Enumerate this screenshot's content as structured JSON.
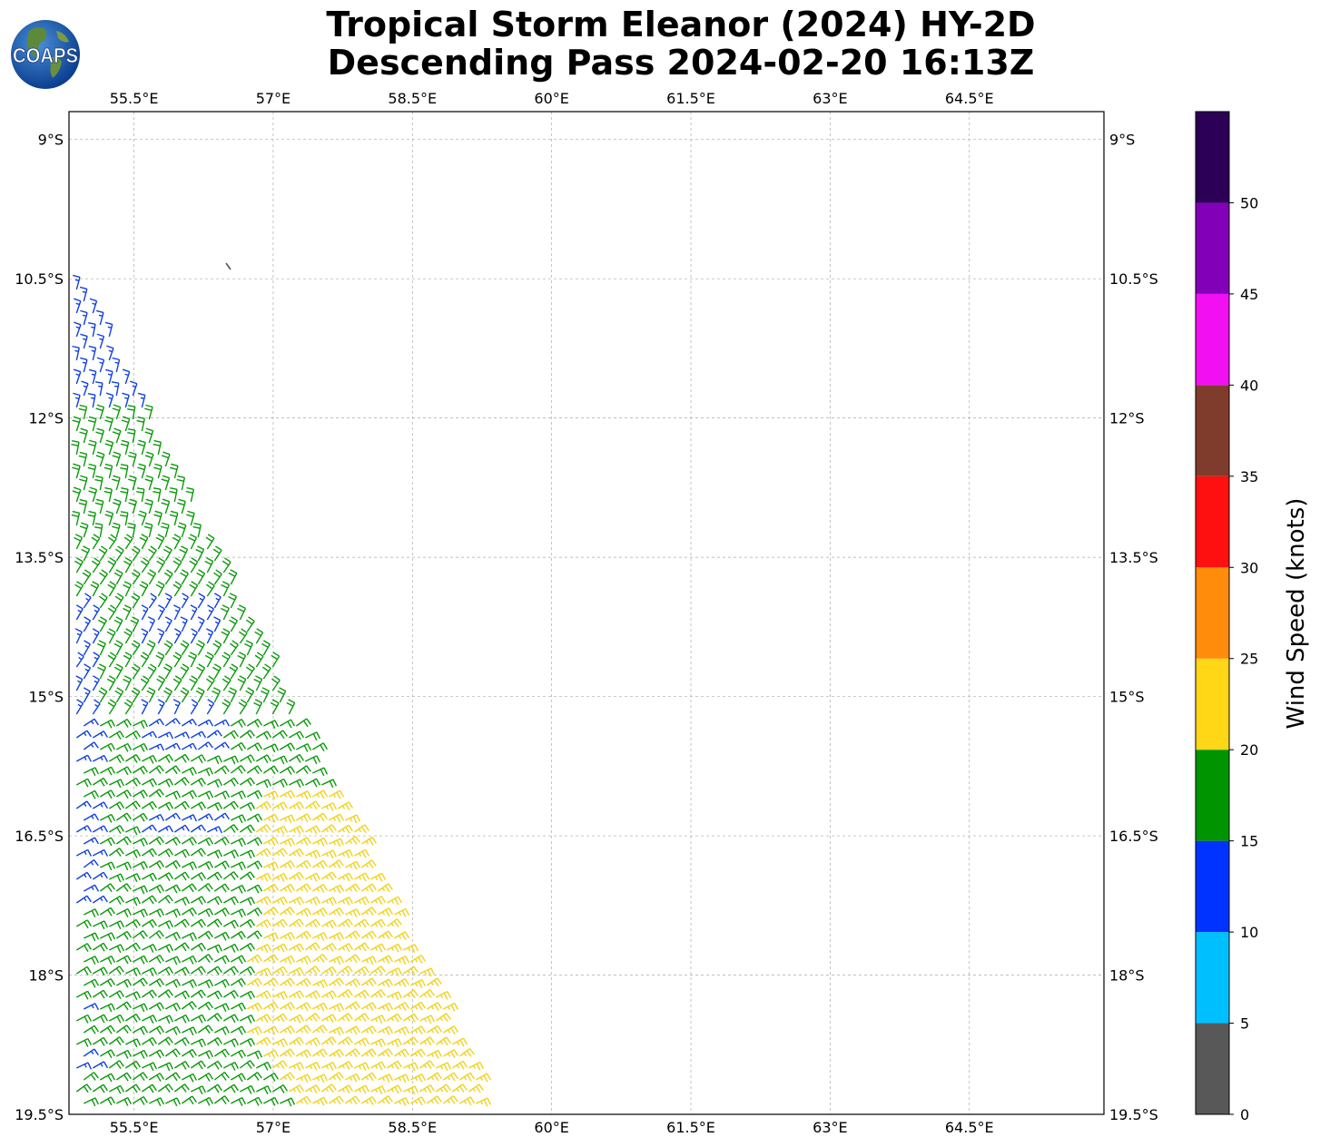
{
  "header": {
    "title_line1": "Tropical Storm Eleanor (2024) HY-2D",
    "title_line2": "Descending Pass 2024-02-20 16:13Z",
    "logo_text": "COAPS"
  },
  "map": {
    "lon_range": [
      54.8,
      65.95
    ],
    "lat_range": [
      -19.5,
      -8.7
    ],
    "lon_ticks": [
      "55.5°E",
      "57°E",
      "58.5°E",
      "60°E",
      "61.5°E",
      "63°E",
      "64.5°E"
    ],
    "lon_tick_values": [
      55.5,
      57,
      58.5,
      60,
      61.5,
      63,
      64.5
    ],
    "lat_ticks": [
      "9°S",
      "10.5°S",
      "12°S",
      "13.5°S",
      "15°S",
      "16.5°S",
      "18°S",
      "19.5°S"
    ],
    "lat_tick_values": [
      -9,
      -10.5,
      -12,
      -13.5,
      -15,
      -16.5,
      -18,
      -19.5
    ],
    "grid": true
  },
  "colorbar": {
    "label": "Wind Speed (knots)",
    "tick_labels": [
      "0",
      "5",
      "10",
      "15",
      "20",
      "25",
      "30",
      "35",
      "40",
      "45",
      "50"
    ],
    "bins": [
      {
        "min": 0,
        "max": 5,
        "color": "#585858"
      },
      {
        "min": 5,
        "max": 10,
        "color": "#00bfff"
      },
      {
        "min": 10,
        "max": 15,
        "color": "#0033ff"
      },
      {
        "min": 15,
        "max": 20,
        "color": "#009400"
      },
      {
        "min": 20,
        "max": 25,
        "color": "#ffd716"
      },
      {
        "min": 25,
        "max": 30,
        "color": "#ff8c0a"
      },
      {
        "min": 30,
        "max": 35,
        "color": "#ff1010"
      },
      {
        "min": 35,
        "max": 40,
        "color": "#7f3b2b"
      },
      {
        "min": 40,
        "max": 45,
        "color": "#f20ff2"
      },
      {
        "min": 45,
        "max": 50,
        "color": "#8200b7"
      },
      {
        "min": 50,
        "max": 55,
        "color": "#2b0056"
      }
    ]
  },
  "wind_swath": {
    "description_color_zones": "blue 10-15 kt in north and west edges, green 15-20 kt central, yellow 20-25 kt in southeast",
    "north_edge_lat": -10.2,
    "south_edge_lat": -19.5
  }
}
